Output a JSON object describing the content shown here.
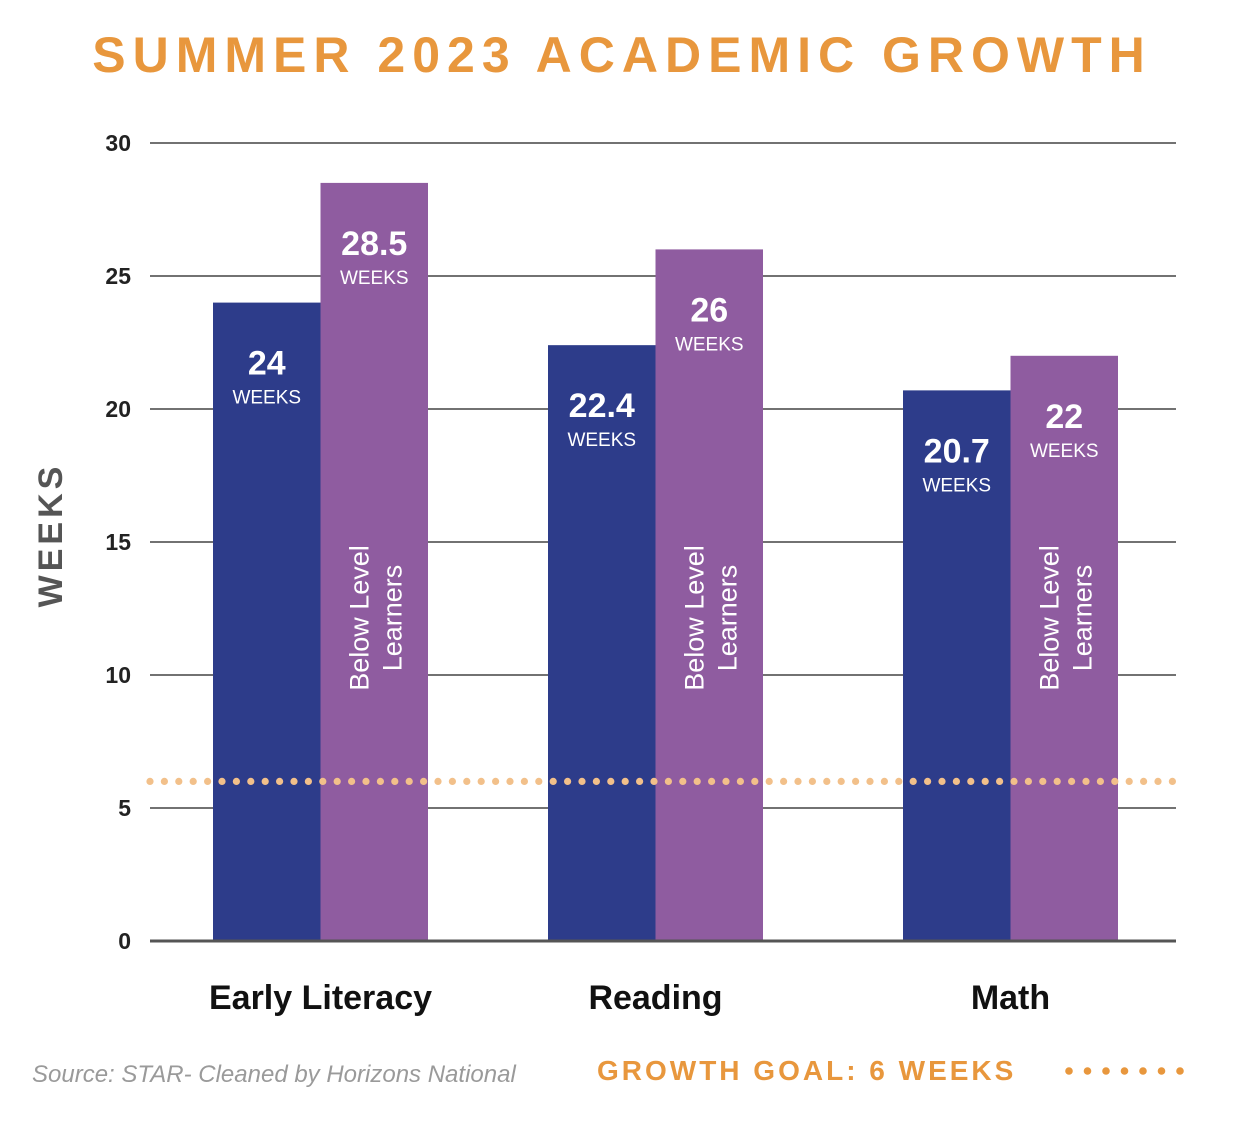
{
  "colors": {
    "accent": "#E8973D",
    "all_students": "#2D3C8A",
    "below_level": "#8F5CA0",
    "goal_dots": "#F2C08A",
    "grid": "#444444"
  },
  "chart_data": {
    "type": "bar",
    "title": "SUMMER 2023 ACADEMIC GROWTH",
    "ylabel": "WEEKS",
    "xlabel": "",
    "ylim": [
      0,
      30
    ],
    "yticks": [
      "0",
      "5",
      "10",
      "15",
      "20",
      "25",
      "30"
    ],
    "grid": true,
    "categories": [
      "Early Literacy",
      "Reading",
      "Math"
    ],
    "series": [
      {
        "name": "",
        "values": [
          24,
          22.4,
          20.7
        ],
        "value_labels": [
          "24",
          "22.4",
          "20.7"
        ]
      },
      {
        "name": "Below Level Learners",
        "label_lines": [
          "Below Level",
          "Learners"
        ],
        "values": [
          28.5,
          26,
          22
        ],
        "value_labels": [
          "28.5",
          "26",
          "22"
        ]
      }
    ],
    "value_unit": "WEEKS",
    "reference_line": {
      "value": 6,
      "style": "dotted"
    },
    "source": "Source: STAR- Cleaned by Horizons National",
    "goal_legend": "GROWTH GOAL: 6 WEEKS"
  }
}
